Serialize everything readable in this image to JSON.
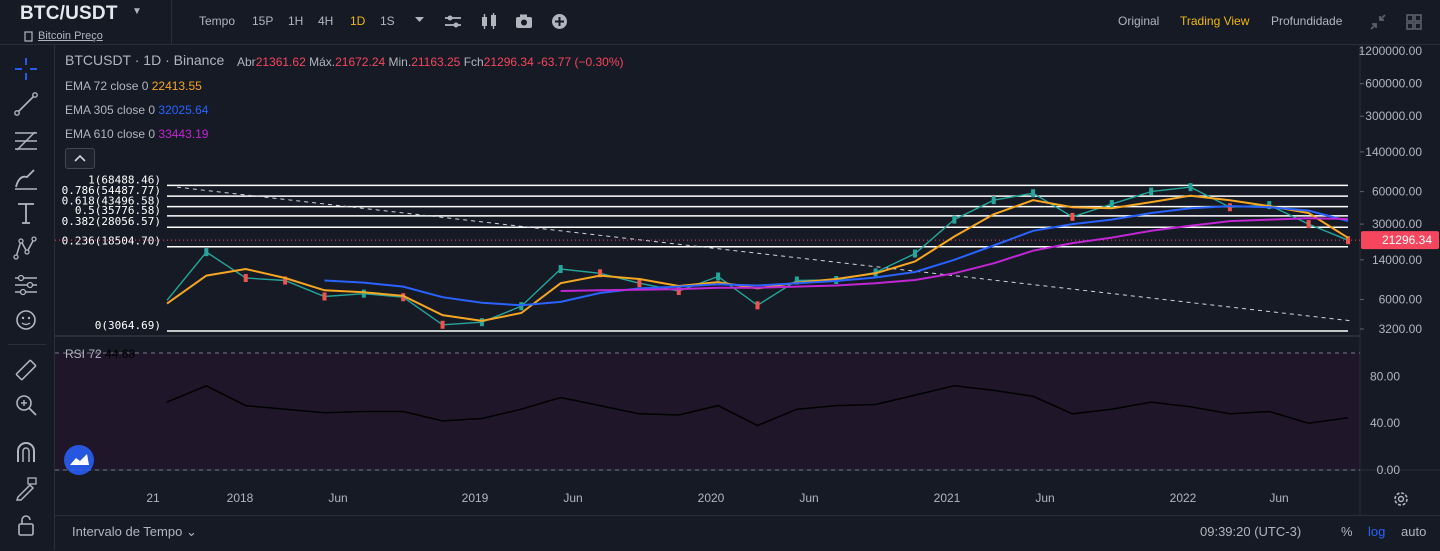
{
  "header": {
    "symbol": "BTC/USDT",
    "subtitle": "Bitcoin Preço",
    "timeframe_label": "Tempo",
    "intervals": [
      "15P",
      "1H",
      "4H",
      "1D",
      "1S"
    ],
    "active_interval": "1D",
    "views": [
      "Original",
      "Trading View",
      "Profundidade"
    ],
    "active_view": "Trading View"
  },
  "legend": {
    "pair": "BTCUSDT · 1D · Binance",
    "open_label": "Abr",
    "open": "21361.62",
    "high_label": "Máx.",
    "high": "21672.24",
    "low_label": "Min.",
    "low": "21163.25",
    "close_label": "Fch",
    "close": "21296.34",
    "change": "-63.77 (−0.30%)"
  },
  "indicators": [
    {
      "label": "EMA 72 close 0",
      "value": "22413.55",
      "color": "#f5a623"
    },
    {
      "label": "EMA 305 close 0",
      "value": "32025.64",
      "color": "#2962ff"
    },
    {
      "label": "EMA 610 close 0",
      "value": "33443.19",
      "color": "#c026d3"
    }
  ],
  "rsi": {
    "label": "RSI 72",
    "value": "44.68",
    "color": "#000000",
    "ticks": [
      "80.00",
      "40.00",
      "0.00"
    ],
    "tick_values": [
      80,
      40,
      0
    ]
  },
  "price_axis": {
    "scale": "log",
    "ticks": [
      "1200000.00",
      "600000.00",
      "300000.00",
      "140000.00",
      "60000.00",
      "30000.00",
      "14000.00",
      "6000.00",
      "3200.00"
    ],
    "tick_values": [
      1200000,
      600000,
      300000,
      140000,
      60000,
      30000,
      14000,
      6000,
      3200
    ],
    "current_price": "21296.34",
    "current_color": "#f6465d"
  },
  "time_axis": {
    "labels": [
      "21",
      "2018",
      "Jun",
      "2019",
      "Jun",
      "2020",
      "Jun",
      "2021",
      "Jun",
      "2022",
      "Jun"
    ]
  },
  "fibonacci": [
    {
      "label": "1(68488.46)",
      "level": 1,
      "price": 68488.46
    },
    {
      "label": "0.786(54487.77)",
      "level": 0.786,
      "price": 54487.77
    },
    {
      "label": "0.618(43496.58)",
      "level": 0.618,
      "price": 43496.58
    },
    {
      "label": "0.5(35776.58)",
      "level": 0.5,
      "price": 35776.58
    },
    {
      "label": "0.382(28056.57)",
      "level": 0.382,
      "price": 28056.57
    },
    {
      "label": "0.236(18504.70)",
      "level": 0.236,
      "price": 18504.7
    },
    {
      "label": "0(3064.69)",
      "level": 0,
      "price": 3064.69
    }
  ],
  "chart_data": {
    "type": "line",
    "title": "BTCUSDT · 1D · Binance",
    "yscale": "log",
    "ylim": [
      3000,
      1400000
    ],
    "x": [
      "2017-11",
      "2017-12",
      "2018-02",
      "2018-04",
      "2018-06",
      "2018-08",
      "2018-10",
      "2018-12",
      "2019-02",
      "2019-04",
      "2019-06",
      "2019-08",
      "2019-10",
      "2019-12",
      "2020-02",
      "2020-03",
      "2020-05",
      "2020-07",
      "2020-09",
      "2020-11",
      "2021-01",
      "2021-02",
      "2021-04",
      "2021-06",
      "2021-08",
      "2021-10",
      "2021-11",
      "2022-01",
      "2022-03",
      "2022-05",
      "2022-07"
    ],
    "series": [
      {
        "name": "BTCUSDT",
        "values": [
          5900,
          16500,
          9500,
          9000,
          6400,
          6800,
          6300,
          3500,
          3700,
          5200,
          11500,
          10500,
          8500,
          7200,
          9800,
          5300,
          9000,
          9100,
          10700,
          16000,
          33000,
          50000,
          58000,
          35000,
          46000,
          60000,
          66000,
          43000,
          45000,
          30000,
          21296
        ]
      },
      {
        "name": "EMA 72 close 0",
        "values": [
          5500,
          10000,
          11500,
          9500,
          7300,
          7000,
          6500,
          4300,
          3800,
          4500,
          8500,
          10000,
          9300,
          8000,
          8700,
          7600,
          8600,
          9300,
          10500,
          13500,
          23000,
          37000,
          50000,
          43000,
          42000,
          48000,
          55000,
          50000,
          44000,
          38000,
          22413
        ]
      },
      {
        "name": "EMA 305 close 0",
        "values": [
          null,
          null,
          null,
          null,
          9000,
          8600,
          7900,
          6300,
          5600,
          5300,
          5700,
          6900,
          7600,
          7900,
          8300,
          8100,
          8500,
          8900,
          9600,
          10800,
          14000,
          19000,
          26000,
          30000,
          33000,
          38000,
          42000,
          44000,
          43000,
          40000,
          32025
        ]
      },
      {
        "name": "EMA 610 close 0",
        "values": [
          null,
          null,
          null,
          null,
          null,
          null,
          null,
          null,
          null,
          null,
          7200,
          7300,
          7400,
          7500,
          7700,
          7700,
          7900,
          8100,
          8500,
          9100,
          10500,
          13000,
          17000,
          20000,
          22500,
          26000,
          29000,
          32000,
          33000,
          34000,
          33443
        ]
      },
      {
        "name": "RSI 72",
        "values": [
          58,
          72,
          55,
          52,
          49,
          50,
          50,
          42,
          44,
          52,
          62,
          55,
          48,
          47,
          55,
          38,
          52,
          55,
          56,
          64,
          72,
          68,
          63,
          48,
          52,
          58,
          54,
          48,
          50,
          40,
          44.68
        ]
      }
    ]
  }
}
